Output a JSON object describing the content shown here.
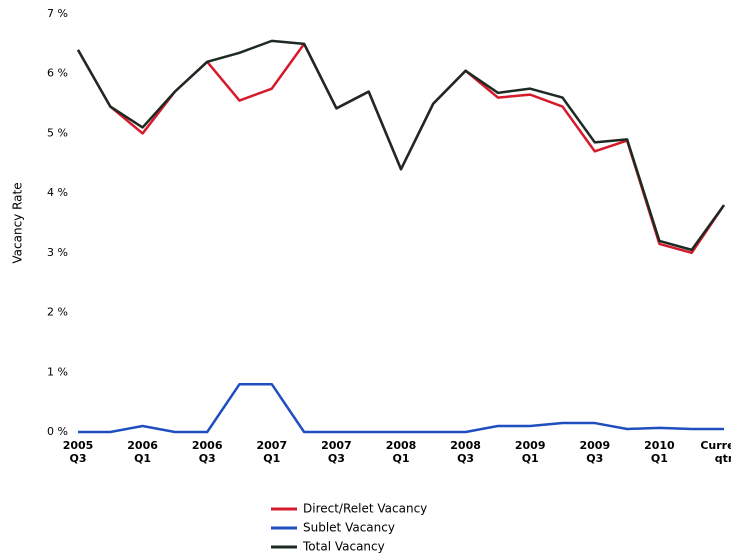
{
  "chart_data": {
    "type": "line",
    "y_label": "Vacancy Rate",
    "categories": [
      "2005 Q3",
      null,
      "2006 Q1",
      null,
      "2006 Q3",
      null,
      "2007 Q1",
      null,
      "2007 Q3",
      null,
      "2008 Q1",
      null,
      "2008 Q3",
      null,
      "2009 Q1",
      null,
      "2009 Q3",
      null,
      "2010 Q1",
      null,
      "Current qtr"
    ],
    "series": [
      {
        "name": "Direct/Relet Vacancy",
        "color": "#d7192c",
        "values": [
          6.4,
          5.45,
          5.0,
          5.7,
          6.2,
          5.55,
          5.75,
          6.5,
          5.42,
          5.7,
          4.4,
          5.5,
          6.05,
          5.6,
          5.65,
          5.45,
          4.7,
          4.88,
          3.15,
          3.0,
          3.8
        ]
      },
      {
        "name": "Sublet Vacancy",
        "color": "#1f4fbf",
        "values": [
          0,
          0,
          0.1,
          0,
          0,
          0.8,
          0.8,
          0,
          0,
          0,
          0,
          0,
          0,
          0.1,
          0.1,
          0.15,
          0.15,
          0.05,
          0.07,
          0.05,
          0.05
        ]
      },
      {
        "name": "Total Vacancy",
        "color": "#1d2a22",
        "values": [
          6.4,
          5.45,
          5.1,
          5.7,
          6.2,
          6.35,
          6.55,
          6.5,
          5.42,
          5.7,
          4.4,
          5.5,
          6.05,
          5.68,
          5.75,
          5.6,
          4.85,
          4.9,
          3.2,
          3.05,
          3.8
        ]
      }
    ],
    "ylim": [
      0,
      7
    ],
    "yticks": [
      {
        "value": 0,
        "label": "0 %"
      },
      {
        "value": 1,
        "label": "1 %"
      },
      {
        "value": 2,
        "label": "2 %"
      },
      {
        "value": 3,
        "label": "3 %"
      },
      {
        "value": 4,
        "label": "4 %"
      },
      {
        "value": 5,
        "label": "5 %"
      },
      {
        "value": 6,
        "label": "6 %"
      },
      {
        "value": 7,
        "label": "7 %"
      }
    ],
    "grid": false
  }
}
